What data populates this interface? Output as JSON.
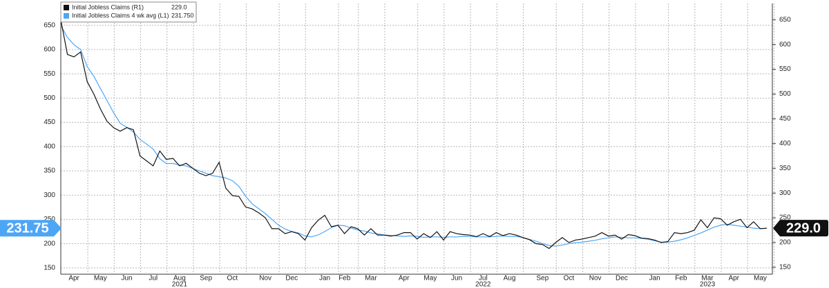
{
  "chart_data": {
    "type": "line",
    "categories": [
      null,
      null,
      "Apr",
      null,
      null,
      null,
      "May",
      null,
      null,
      null,
      "Jun",
      null,
      null,
      null,
      "Jul",
      null,
      null,
      null,
      "Aug",
      null,
      null,
      null,
      "Sep",
      null,
      null,
      null,
      "Oct",
      null,
      null,
      null,
      null,
      "Nov",
      null,
      null,
      null,
      "Dec",
      null,
      null,
      null,
      null,
      "Jan",
      null,
      null,
      "Feb",
      null,
      null,
      null,
      "Mar",
      null,
      null,
      null,
      null,
      "Apr",
      null,
      null,
      null,
      "May",
      null,
      null,
      null,
      "Jun",
      null,
      null,
      null,
      "Jul",
      null,
      null,
      null,
      "Aug",
      null,
      null,
      null,
      null,
      "Sep",
      null,
      null,
      null,
      "Oct",
      null,
      null,
      null,
      "Nov",
      null,
      null,
      null,
      "Dec",
      null,
      null,
      null,
      null,
      "Jan",
      null,
      null,
      null,
      "Feb",
      null,
      null,
      null,
      "Mar",
      null,
      null,
      null,
      "Apr",
      null,
      null,
      null,
      "May",
      null
    ],
    "category_years": [
      null,
      null,
      null,
      null,
      null,
      null,
      null,
      null,
      null,
      null,
      null,
      null,
      null,
      null,
      null,
      null,
      null,
      null,
      "2021",
      null,
      null,
      null,
      null,
      null,
      null,
      null,
      null,
      null,
      null,
      null,
      null,
      null,
      null,
      null,
      null,
      null,
      null,
      null,
      null,
      null,
      null,
      null,
      null,
      null,
      null,
      null,
      null,
      null,
      null,
      null,
      null,
      null,
      null,
      null,
      null,
      null,
      null,
      null,
      null,
      null,
      null,
      null,
      null,
      null,
      "2022",
      null,
      null,
      null,
      null,
      null,
      null,
      null,
      null,
      null,
      null,
      null,
      null,
      null,
      null,
      null,
      null,
      null,
      null,
      null,
      null,
      null,
      null,
      null,
      null,
      null,
      null,
      null,
      null,
      null,
      null,
      null,
      null,
      null,
      "2023",
      null,
      null,
      null,
      null,
      null,
      null,
      null,
      null,
      null
    ],
    "series": [
      {
        "name": "Initial Jobless Claims (R1)",
        "legend_value": "229.0",
        "color": "#111111",
        "axis": "y2",
        "values": [
          650,
          580,
          575,
          585,
          525,
          500,
          470,
          445,
          432,
          425,
          432,
          428,
          375,
          365,
          355,
          385,
          368,
          370,
          355,
          360,
          350,
          340,
          335,
          340,
          362,
          310,
          295,
          293,
          272,
          268,
          260,
          250,
          228,
          228,
          218,
          222,
          218,
          205,
          230,
          245,
          255,
          232,
          235,
          218,
          232,
          228,
          215,
          228,
          215,
          215,
          213,
          215,
          220,
          220,
          207,
          218,
          210,
          222,
          205,
          222,
          218,
          216,
          215,
          212,
          218,
          212,
          220,
          214,
          218,
          215,
          210,
          206,
          198,
          196,
          188,
          200,
          210,
          200,
          205,
          207,
          210,
          213,
          220,
          213,
          215,
          207,
          216,
          214,
          209,
          208,
          205,
          200,
          202,
          220,
          218,
          220,
          225,
          246,
          230,
          250,
          248,
          235,
          242,
          247,
          230,
          242,
          228,
          229
        ]
      },
      {
        "name": "Initial Jobless Claims 4 wk avg (L1)",
        "legend_value": "231.750",
        "color": "#4da6f5",
        "axis": "y",
        "values": [
          650,
          625,
          610,
          600,
          565,
          545,
          520,
          495,
          470,
          448,
          440,
          430,
          415,
          405,
          395,
          375,
          365,
          365,
          362,
          360,
          355,
          350,
          345,
          340,
          338,
          335,
          330,
          318,
          298,
          282,
          272,
          262,
          250,
          238,
          230,
          225,
          222,
          216,
          214,
          218,
          225,
          233,
          238,
          237,
          232,
          228,
          226,
          222,
          220,
          218,
          217,
          216,
          215,
          216,
          215,
          213,
          214,
          214,
          213,
          214,
          214,
          215,
          215,
          214,
          214,
          214,
          215,
          216,
          215,
          215,
          213,
          209,
          205,
          200,
          196,
          195,
          197,
          200,
          202,
          203,
          205,
          207,
          210,
          212,
          214,
          213,
          212,
          212,
          211,
          209,
          206,
          203,
          203,
          205,
          208,
          212,
          217,
          222,
          228,
          234,
          238,
          240,
          238,
          236,
          234,
          232,
          231,
          231.75
        ]
      }
    ],
    "ylim": [
      137,
      695
    ],
    "yticks": [
      150,
      200,
      250,
      300,
      350,
      400,
      450,
      500,
      550,
      600,
      650
    ],
    "y2lim": [
      136,
      683
    ],
    "y2ticks": [
      150,
      200,
      250,
      300,
      350,
      400,
      450,
      500,
      550,
      600,
      650
    ],
    "grid": true,
    "legend": "top-left"
  }
}
